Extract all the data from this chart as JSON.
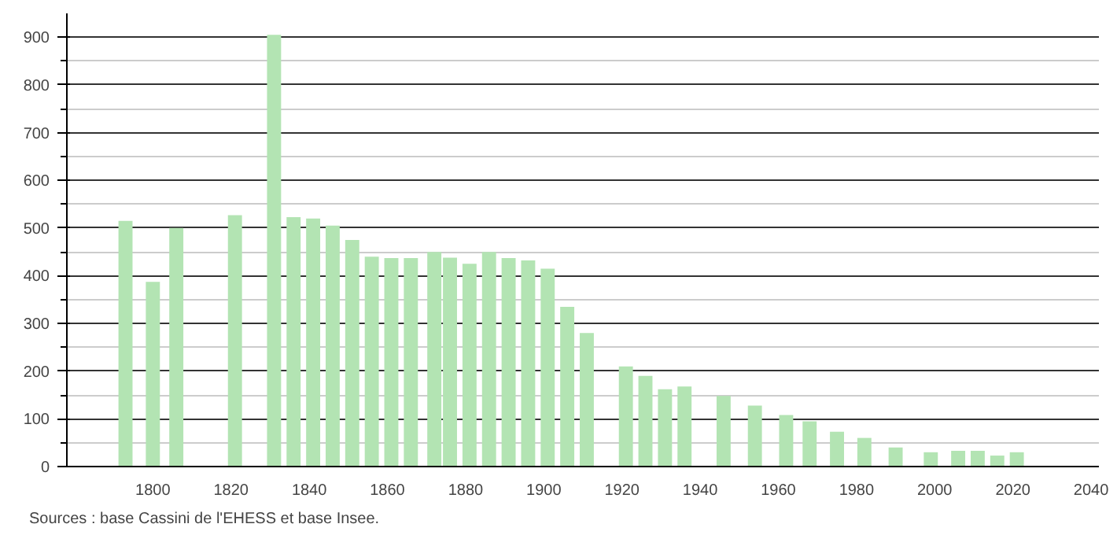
{
  "chart_data": {
    "type": "bar",
    "color": "#b3e4b3",
    "x": [
      1793,
      1800,
      1806,
      1821,
      1831,
      1836,
      1841,
      1846,
      1851,
      1856,
      1861,
      1866,
      1872,
      1876,
      1881,
      1886,
      1891,
      1896,
      1901,
      1906,
      1911,
      1921,
      1926,
      1931,
      1936,
      1946,
      1954,
      1962,
      1968,
      1975,
      1982,
      1990,
      1999,
      2006,
      2011,
      2016,
      2021
    ],
    "values": [
      515,
      387,
      500,
      527,
      905,
      523,
      520,
      505,
      475,
      440,
      437,
      437,
      450,
      438,
      425,
      450,
      437,
      432,
      415,
      335,
      280,
      210,
      190,
      162,
      168,
      148,
      128,
      108,
      95,
      73,
      60,
      40,
      30,
      33,
      33,
      23,
      30
    ],
    "xlim": [
      1778,
      2042
    ],
    "xticks": [
      1800,
      1820,
      1840,
      1860,
      1880,
      1900,
      1920,
      1940,
      1960,
      1980,
      2000,
      2020,
      2040
    ],
    "ylim": [
      0,
      950
    ],
    "yticks": [
      0,
      100,
      200,
      300,
      400,
      500,
      600,
      700,
      800,
      900
    ],
    "grid": "y",
    "annotations": [
      "Sources : base Cassini de l'EHESS et base Insee."
    ]
  }
}
